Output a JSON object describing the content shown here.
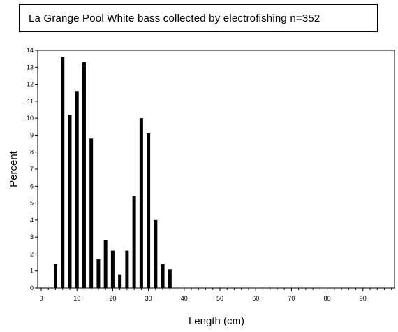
{
  "chart_data": {
    "type": "bar",
    "title": "La Grange Pool White bass collected by electrofishing n=352",
    "xlabel": "Length (cm)",
    "ylabel": "Percent",
    "xlim": [
      0,
      98
    ],
    "ylim": [
      0,
      14
    ],
    "x_ticks": [
      0,
      10,
      20,
      30,
      40,
      50,
      60,
      70,
      80,
      90
    ],
    "y_ticks": [
      0,
      1,
      2,
      3,
      4,
      5,
      6,
      7,
      8,
      9,
      10,
      11,
      12,
      13,
      14
    ],
    "x": [
      4,
      6,
      8,
      10,
      12,
      14,
      16,
      18,
      20,
      22,
      24,
      26,
      28,
      30,
      32,
      34,
      36
    ],
    "values": [
      1.4,
      13.6,
      10.2,
      11.6,
      13.3,
      8.8,
      1.7,
      2.8,
      2.2,
      0.8,
      2.2,
      5.4,
      10.0,
      9.1,
      4.0,
      1.4,
      1.1
    ],
    "color": "#000000"
  }
}
